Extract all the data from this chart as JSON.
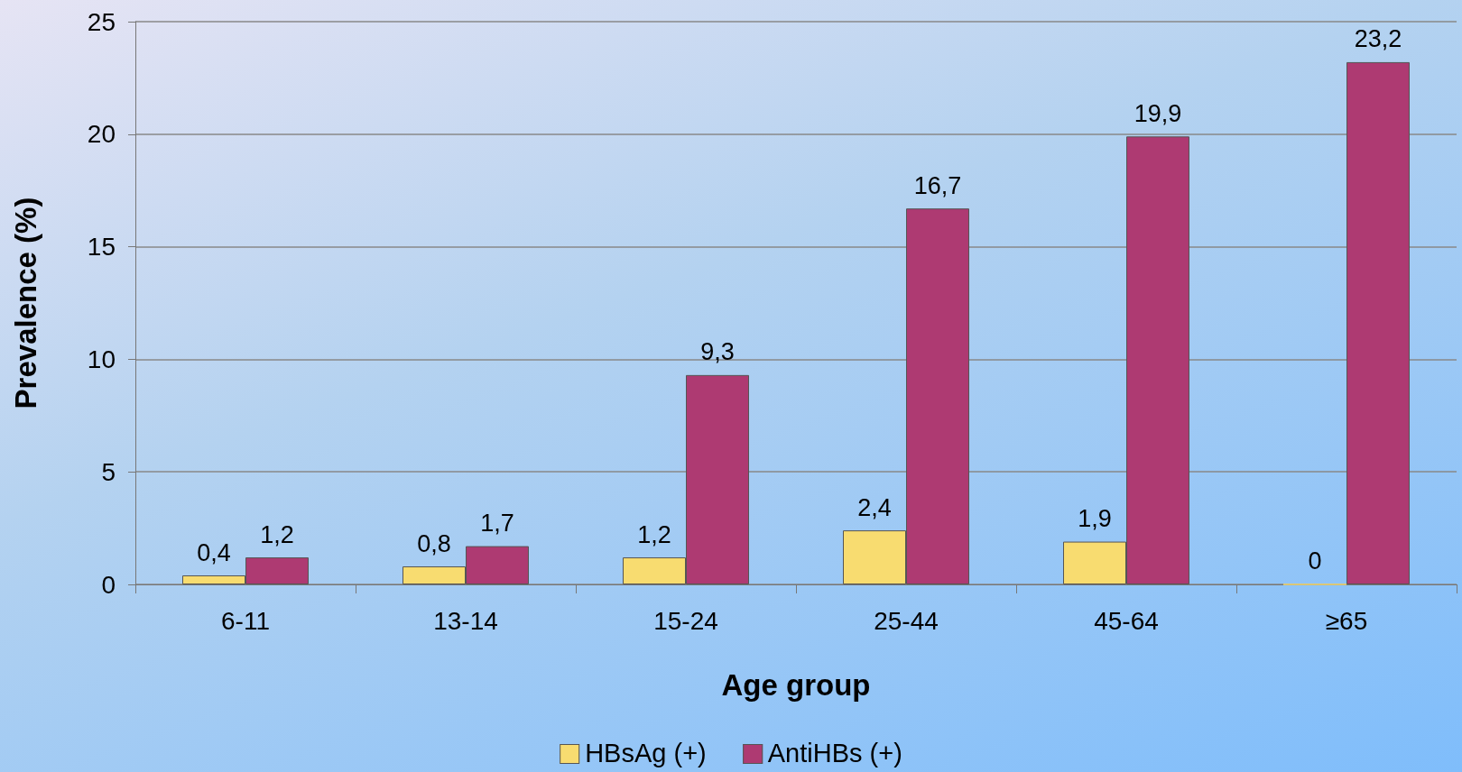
{
  "chart_data": {
    "type": "bar",
    "xlabel": "Age group",
    "ylabel": "Prevalence (%)",
    "categories": [
      "6-11",
      "13-14",
      "15-24",
      "25-44",
      "45-64",
      "≥65"
    ],
    "series": [
      {
        "name": "HBsAg (+)",
        "color": "#f8dc70",
        "values": [
          0.4,
          0.8,
          1.2,
          2.4,
          1.9,
          0
        ],
        "value_labels": [
          "0,4",
          "0,8",
          "1,2",
          "2,4",
          "1,9",
          "0"
        ]
      },
      {
        "name": "AntiHBs (+)",
        "color": "#ae3a72",
        "values": [
          1.2,
          1.7,
          9.3,
          16.7,
          19.9,
          23.2
        ],
        "value_labels": [
          "1,2",
          "1,7",
          "9,3",
          "16,7",
          "19,9",
          "23,2"
        ]
      }
    ],
    "ylim": [
      0,
      25
    ],
    "yticks": [
      0,
      5,
      10,
      15,
      20,
      25
    ],
    "grid": "y",
    "legend": "bottom"
  }
}
